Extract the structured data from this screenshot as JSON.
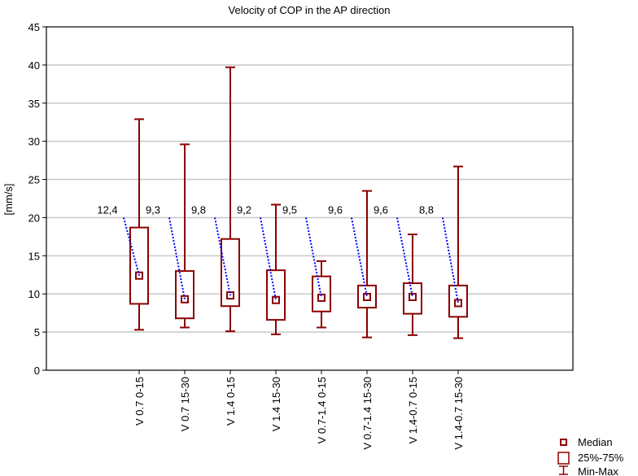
{
  "chart_data": {
    "type": "boxplot",
    "title": "Velocity of COP in the AP direction",
    "xlabel": "",
    "ylabel": "[mm/s]",
    "ylim": [
      0,
      45
    ],
    "yticks": [
      0,
      5,
      10,
      15,
      20,
      25,
      30,
      35,
      40,
      45
    ],
    "grid": true,
    "categories": [
      "V 0.7 0-15",
      "V 0.7 15-30",
      "V 1.4 0-15",
      "V 1.4 15-30",
      "V 0.7-1.4 0-15",
      "V 0.7-1.4 15-30",
      "V 1.4-0.7 0-15",
      "V 1.4-0.7 15-30"
    ],
    "median": [
      12.4,
      9.3,
      9.8,
      9.2,
      9.5,
      9.6,
      9.6,
      8.8
    ],
    "median_labels": [
      "12,4",
      "9,3",
      "9,8",
      "9,2",
      "9,5",
      "9,6",
      "9,6",
      "8,8"
    ],
    "q1": [
      8.7,
      6.8,
      8.4,
      6.6,
      7.7,
      8.2,
      7.4,
      7.0
    ],
    "q3": [
      18.7,
      13.0,
      17.2,
      13.1,
      12.3,
      11.1,
      11.4,
      11.1
    ],
    "min": [
      5.3,
      5.6,
      5.1,
      4.7,
      5.6,
      4.3,
      4.6,
      4.2
    ],
    "max": [
      32.9,
      29.6,
      39.7,
      21.7,
      14.3,
      23.5,
      17.8,
      26.7
    ],
    "legend": {
      "position": "bottom-right",
      "items": [
        "Median",
        "25%-75%",
        "Min-Max"
      ]
    },
    "colors": {
      "box": "#8b0000",
      "label_line": "#0000ff",
      "grid": "#c8c8c8"
    }
  }
}
